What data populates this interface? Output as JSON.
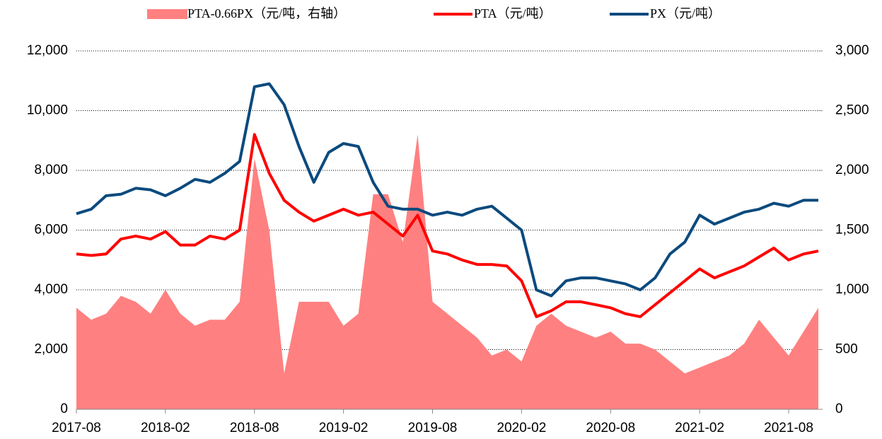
{
  "chart_data": {
    "type": "line",
    "categories": [
      "2017-08",
      null,
      null,
      null,
      null,
      null,
      "2018-02",
      null,
      null,
      null,
      null,
      null,
      "2018-08",
      null,
      null,
      null,
      null,
      null,
      "2019-02",
      null,
      null,
      null,
      null,
      null,
      "2019-08",
      null,
      null,
      null,
      null,
      null,
      "2020-02",
      null,
      null,
      null,
      null,
      null,
      "2020-08",
      null,
      null,
      null,
      null,
      null,
      "2021-02",
      null,
      null,
      null,
      null,
      null,
      "2021-08",
      null,
      null
    ],
    "series": [
      {
        "name": "PTA-0.66PX（元/吨，右轴）",
        "color": "#ff8080",
        "kind": "area",
        "axis": "y2",
        "values": [
          850,
          750,
          800,
          950,
          900,
          800,
          1000,
          800,
          700,
          750,
          750,
          900,
          2100,
          1500,
          300,
          900,
          900,
          900,
          700,
          800,
          1800,
          1800,
          1400,
          2300,
          900,
          800,
          700,
          600,
          450,
          500,
          400,
          700,
          800,
          700,
          650,
          600,
          650,
          550,
          550,
          500,
          400,
          300,
          350,
          400,
          450,
          550,
          750,
          600,
          450,
          650,
          850
        ]
      },
      {
        "name": "PTA（元/吨）",
        "color": "#ff0000",
        "kind": "line",
        "values": [
          5200,
          5150,
          5200,
          5700,
          5800,
          5700,
          5950,
          5500,
          5500,
          5800,
          5700,
          6000,
          9200,
          7900,
          7000,
          6600,
          6300,
          6500,
          6700,
          6500,
          6600,
          6200,
          5800,
          6500,
          5300,
          5200,
          5000,
          4850,
          4850,
          4800,
          4300,
          3100,
          3300,
          3600,
          3600,
          3500,
          3400,
          3200,
          3100,
          3500,
          3900,
          4300,
          4700,
          4400,
          4600,
          4800,
          5100,
          5400,
          5000,
          5200,
          5300
        ]
      },
      {
        "name": "PX（元/吨）",
        "color": "#0b4a7e",
        "kind": "line",
        "values": [
          6550,
          6700,
          7150,
          7200,
          7400,
          7350,
          7150,
          7400,
          7700,
          7600,
          7900,
          8300,
          10800,
          10900,
          10200,
          8800,
          7600,
          8600,
          8900,
          8800,
          7600,
          6800,
          6700,
          6700,
          6500,
          6600,
          6500,
          6700,
          6800,
          6400,
          6000,
          4000,
          3800,
          4300,
          4400,
          4400,
          4300,
          4200,
          4000,
          4400,
          5200,
          5600,
          6500,
          6200,
          6400,
          6600,
          6700,
          6900,
          6800,
          7000,
          7000
        ]
      }
    ],
    "ylim": [
      0,
      12000
    ],
    "yticks": [
      0,
      {
        "value": 2000,
        "label": "2,000"
      },
      {
        "value": 4000,
        "label": "4,000"
      },
      {
        "value": 6000,
        "label": "6,000"
      },
      {
        "value": 8000,
        "label": "8,000"
      },
      {
        "value": 10000,
        "label": "10,000"
      },
      {
        "value": 12000,
        "label": "12,000"
      }
    ],
    "y2lim": [
      0,
      3000
    ],
    "y2ticks": [
      0,
      500,
      {
        "value": 1000,
        "label": "1,000"
      },
      {
        "value": 1500,
        "label": "1,500"
      },
      {
        "value": 2000,
        "label": "2,000"
      },
      {
        "value": 2500,
        "label": "2,500"
      },
      {
        "value": 3000,
        "label": "3,000"
      }
    ],
    "grid": true
  }
}
